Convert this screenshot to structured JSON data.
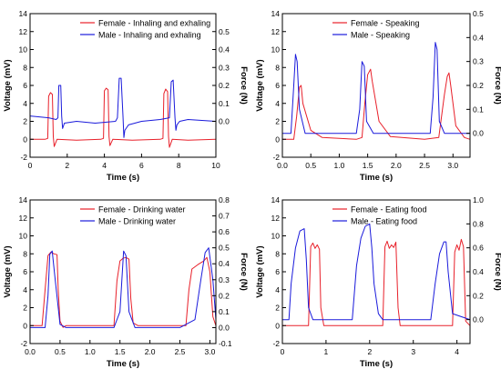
{
  "colors": {
    "female": "#e8202a",
    "male": "#1a1adb",
    "axis": "#000000"
  },
  "chart_data": [
    {
      "type": "line",
      "xlabel": "Time (s)",
      "ylabel": "Voltage (mV)",
      "y2label": "Force (N)",
      "xlim": [
        0,
        10
      ],
      "xticks": [
        0,
        2,
        4,
        6,
        8,
        10
      ],
      "ylim": [
        -2,
        14
      ],
      "yticks": [
        -2,
        0,
        2,
        4,
        6,
        8,
        10,
        12,
        14
      ],
      "y2lim": [
        -0.2,
        0.6
      ],
      "y2ticks": [
        0.0,
        0.1,
        0.2,
        0.3,
        0.4,
        0.5
      ],
      "series": [
        {
          "name": "Female - Inhaling and exhaling",
          "color": "#e8202a",
          "y_units": "Voltage",
          "x": [
            0,
            0.8,
            0.95,
            1.0,
            1.1,
            1.2,
            1.25,
            1.3,
            1.45,
            2.5,
            3.8,
            3.95,
            4.0,
            4.1,
            4.2,
            4.25,
            4.3,
            4.45,
            5.5,
            7.0,
            7.15,
            7.2,
            7.3,
            7.4,
            7.45,
            7.5,
            7.65,
            8.5,
            10
          ],
          "values": [
            0,
            0,
            0.1,
            4.8,
            5.2,
            5.0,
            0.3,
            -0.8,
            0.0,
            -0.1,
            0,
            0.1,
            5.4,
            5.7,
            5.5,
            0.3,
            -0.7,
            0.0,
            -0.1,
            0,
            0.1,
            5.1,
            5.6,
            5.3,
            0.3,
            -0.9,
            0.0,
            -0.1,
            0
          ]
        },
        {
          "name": "Male - Inhaling and exhaling",
          "color": "#1a1adb",
          "y_units": "Force",
          "x": [
            0,
            1.0,
            1.4,
            1.5,
            1.55,
            1.65,
            1.7,
            1.75,
            1.85,
            2.5,
            3.5,
            4.6,
            4.7,
            4.8,
            4.9,
            5.0,
            5.05,
            5.1,
            5.3,
            6.0,
            7.0,
            7.5,
            7.6,
            7.7,
            7.8,
            7.85,
            7.9,
            8.05,
            8.5,
            10
          ],
          "values": [
            0.03,
            0.02,
            0.01,
            0.02,
            0.2,
            0.2,
            0.03,
            -0.04,
            -0.01,
            0.0,
            -0.01,
            0.0,
            0.02,
            0.24,
            0.24,
            0.03,
            -0.09,
            -0.05,
            -0.02,
            0.0,
            0.01,
            0.02,
            0.22,
            0.23,
            0.02,
            -0.05,
            -0.02,
            0.0,
            0.01,
            0.0
          ]
        }
      ]
    },
    {
      "type": "line",
      "xlabel": "Time (s)",
      "ylabel": "Voltage (mV)",
      "y2label": "Force (N)",
      "xlim": [
        0,
        3.3
      ],
      "xticks": [
        0.0,
        0.5,
        1.0,
        1.5,
        2.0,
        2.5,
        3.0
      ],
      "ylim": [
        -2,
        14
      ],
      "yticks": [
        -2,
        0,
        2,
        4,
        6,
        8,
        10,
        12,
        14
      ],
      "y2lim": [
        -0.1,
        0.5
      ],
      "y2ticks": [
        0.0,
        0.1,
        0.2,
        0.3,
        0.4,
        0.5
      ],
      "series": [
        {
          "name": "Female - Speaking",
          "color": "#e8202a",
          "y_units": "Voltage",
          "x": [
            0,
            0.2,
            0.25,
            0.3,
            0.33,
            0.36,
            0.5,
            0.7,
            1.3,
            1.4,
            1.45,
            1.5,
            1.55,
            1.58,
            1.7,
            1.9,
            2.5,
            2.75,
            2.85,
            2.9,
            2.93,
            2.96,
            3.05,
            3.2,
            3.3
          ],
          "values": [
            0,
            0,
            2.5,
            5.8,
            6.0,
            4.0,
            1.0,
            0.2,
            0,
            0.2,
            4.0,
            7.2,
            7.8,
            6.5,
            2.0,
            0.3,
            0,
            0.2,
            5.0,
            7.0,
            7.4,
            6.0,
            1.5,
            0.2,
            0
          ]
        },
        {
          "name": "Male - Speaking",
          "color": "#1a1adb",
          "y_units": "Force",
          "x": [
            0,
            0.15,
            0.2,
            0.23,
            0.26,
            0.3,
            0.4,
            1.0,
            1.3,
            1.36,
            1.4,
            1.44,
            1.48,
            1.6,
            2.0,
            2.6,
            2.65,
            2.69,
            2.72,
            2.76,
            2.85,
            3.3
          ],
          "values": [
            0,
            0,
            0.2,
            0.33,
            0.3,
            0.1,
            0.0,
            0.0,
            0,
            0.1,
            0.3,
            0.28,
            0.05,
            0.0,
            0.0,
            0,
            0.15,
            0.38,
            0.35,
            0.05,
            0.0,
            0.0
          ]
        }
      ]
    },
    {
      "type": "line",
      "xlabel": "Time (s)",
      "ylabel": "Voltage (mV)",
      "y2label": "Force (N)",
      "xlim": [
        0,
        3.1
      ],
      "xticks": [
        0.0,
        0.5,
        1.0,
        1.5,
        2.0,
        2.5,
        3.0
      ],
      "ylim": [
        -2,
        14
      ],
      "yticks": [
        -2,
        0,
        2,
        4,
        6,
        8,
        10,
        12,
        14
      ],
      "y2lim": [
        -0.1,
        0.8
      ],
      "y2ticks": [
        -0.1,
        0.0,
        0.1,
        0.2,
        0.3,
        0.4,
        0.5,
        0.6,
        0.7,
        0.8
      ],
      "series": [
        {
          "name": "Female - Drinking water",
          "color": "#e8202a",
          "y_units": "Voltage",
          "x": [
            0,
            0.2,
            0.25,
            0.3,
            0.35,
            0.4,
            0.45,
            0.47,
            0.5,
            0.55,
            0.6,
            1.4,
            1.45,
            1.5,
            1.55,
            1.6,
            1.65,
            1.68,
            1.72,
            1.8,
            2.6,
            2.65,
            2.7,
            2.8,
            2.9,
            2.95,
            3.0,
            3.05,
            3.1
          ],
          "values": [
            0,
            0,
            4.0,
            7.8,
            8.2,
            8.0,
            7.9,
            4.0,
            0.5,
            -0.2,
            0,
            0,
            5.0,
            7.2,
            7.5,
            7.6,
            7.4,
            3.0,
            0.3,
            0,
            0,
            4.0,
            6.3,
            6.8,
            7.2,
            7.6,
            6.0,
            1.0,
            0.0
          ]
        },
        {
          "name": "Male - Drinking water",
          "color": "#1a1adb",
          "y_units": "Force",
          "x": [
            0,
            0.25,
            0.3,
            0.33,
            0.37,
            0.42,
            0.5,
            0.6,
            1.4,
            1.5,
            1.56,
            1.6,
            1.65,
            1.75,
            2.5,
            2.75,
            2.85,
            2.92,
            2.98,
            3.05,
            3.1
          ],
          "values": [
            0.0,
            0.0,
            0.2,
            0.46,
            0.48,
            0.3,
            0.02,
            0.0,
            0.0,
            0.1,
            0.48,
            0.45,
            0.1,
            0.0,
            0.0,
            0.05,
            0.3,
            0.47,
            0.5,
            0.3,
            0.05
          ]
        }
      ]
    },
    {
      "type": "line",
      "xlabel": "Time (s)",
      "ylabel": "Voltage (mV)",
      "y2label": "Force (N)",
      "xlim": [
        0,
        4.3
      ],
      "xticks": [
        0,
        1,
        2,
        3,
        4
      ],
      "ylim": [
        -2,
        14
      ],
      "yticks": [
        -2,
        0,
        2,
        4,
        6,
        8,
        10,
        12,
        14
      ],
      "y2lim": [
        -0.2,
        1.0
      ],
      "y2ticks": [
        0.0,
        0.2,
        0.4,
        0.6,
        0.8,
        1.0
      ],
      "series": [
        {
          "name": "Female - Eating food",
          "color": "#e8202a",
          "y_units": "Voltage",
          "x": [
            0,
            0.6,
            0.65,
            0.7,
            0.75,
            0.8,
            0.85,
            0.88,
            0.95,
            2.3,
            2.35,
            2.4,
            2.45,
            2.5,
            2.55,
            2.6,
            2.65,
            2.7,
            3.9,
            3.95,
            4.0,
            4.05,
            4.1,
            4.15,
            4.2,
            4.3
          ],
          "values": [
            0,
            0,
            8.8,
            9.2,
            8.6,
            9.0,
            8.5,
            2.0,
            0.0,
            0,
            8.8,
            9.4,
            8.6,
            9.0,
            8.7,
            9.3,
            2.0,
            0.0,
            0,
            8.2,
            9.0,
            8.4,
            9.6,
            8.8,
            0.5,
            0.0
          ]
        },
        {
          "name": "Male - Eating food",
          "color": "#1a1adb",
          "y_units": "Force",
          "x": [
            0,
            0.15,
            0.2,
            0.3,
            0.4,
            0.5,
            0.55,
            0.6,
            0.7,
            1.6,
            1.7,
            1.8,
            1.9,
            2.0,
            2.05,
            2.1,
            2.2,
            2.3,
            3.4,
            3.5,
            3.6,
            3.7,
            3.75,
            3.8,
            3.9,
            4.3
          ],
          "values": [
            0,
            0,
            0.3,
            0.6,
            0.74,
            0.76,
            0.5,
            0.1,
            0.0,
            0,
            0.45,
            0.68,
            0.78,
            0.8,
            0.6,
            0.3,
            0.05,
            0.0,
            0,
            0.3,
            0.55,
            0.65,
            0.65,
            0.4,
            0.05,
            0.0
          ]
        }
      ]
    }
  ]
}
